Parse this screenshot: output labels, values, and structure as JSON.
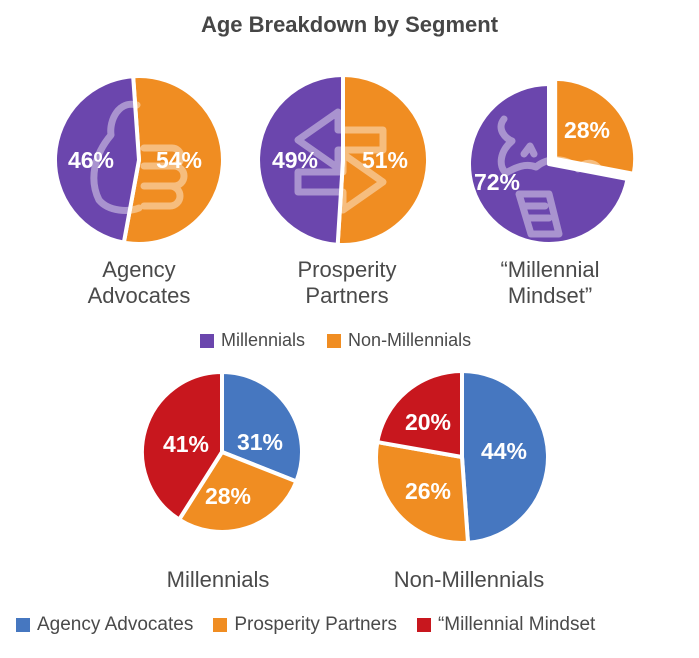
{
  "title": "Age Breakdown by Segment",
  "colors": {
    "millennials": "#6b46ad",
    "non_millennials": "#f08d22",
    "agency_advocates": "#4677c0",
    "prosperity_partners": "#f08d22",
    "millennial_mindset": "#c8171e"
  },
  "chart_data": [
    {
      "type": "pie",
      "title": "Agency Advocates",
      "label_lines": [
        "Agency",
        "Advocates"
      ],
      "icon": "thumbs-up-icon",
      "slices": [
        {
          "name": "Millennials",
          "value": 46,
          "label": "46%",
          "color": "#6b46ad"
        },
        {
          "name": "Non-Millennials",
          "value": 54,
          "label": "54%",
          "color": "#f08d22"
        }
      ]
    },
    {
      "type": "pie",
      "title": "Prosperity Partners",
      "label_lines": [
        "Prosperity",
        "Partners"
      ],
      "icon": "exchange-arrows-icon",
      "slices": [
        {
          "name": "Millennials",
          "value": 49,
          "label": "49%",
          "color": "#6b46ad"
        },
        {
          "name": "Non-Millennials",
          "value": 51,
          "label": "51%",
          "color": "#f08d22"
        }
      ]
    },
    {
      "type": "pie",
      "title": "“Millennial Mindset”",
      "label_lines": [
        "“Millennial",
        "Mindset”"
      ],
      "icon": "piggy-bank-slide-icon",
      "slices": [
        {
          "name": "Millennials",
          "value": 72,
          "label": "72%",
          "color": "#6b46ad"
        },
        {
          "name": "Non-Millennials",
          "value": 28,
          "label": "28%",
          "color": "#f08d22"
        }
      ]
    },
    {
      "type": "pie",
      "title": "Millennials",
      "label_lines": [
        "Millennials"
      ],
      "slices": [
        {
          "name": "Agency Advocates",
          "value": 31,
          "label": "31%",
          "color": "#4677c0"
        },
        {
          "name": "Prosperity Partners",
          "value": 28,
          "label": "28%",
          "color": "#f08d22"
        },
        {
          "name": "“Millennial Mindset",
          "value": 41,
          "label": "41%",
          "color": "#c8171e"
        }
      ]
    },
    {
      "type": "pie",
      "title": "Non-Millennials",
      "label_lines": [
        "Non-Millennials"
      ],
      "slices": [
        {
          "name": "Agency Advocates",
          "value": 44,
          "label": "44%",
          "color": "#4677c0"
        },
        {
          "name": "Prosperity Partners",
          "value": 26,
          "label": "26%",
          "color": "#f08d22"
        },
        {
          "name": "“Millennial Mindset",
          "value": 20,
          "label": "20%",
          "color": "#c8171e"
        }
      ]
    }
  ],
  "legend_top": [
    {
      "label": "Millennials",
      "color": "#6b46ad"
    },
    {
      "label": "Non-Millennials",
      "color": "#f08d22"
    }
  ],
  "legend_bottom": [
    {
      "label": "Agency Advocates",
      "color": "#4677c0"
    },
    {
      "label": "Prosperity Partners",
      "color": "#f08d22"
    },
    {
      "label": "“Millennial Mindset",
      "color": "#c8171e"
    }
  ]
}
